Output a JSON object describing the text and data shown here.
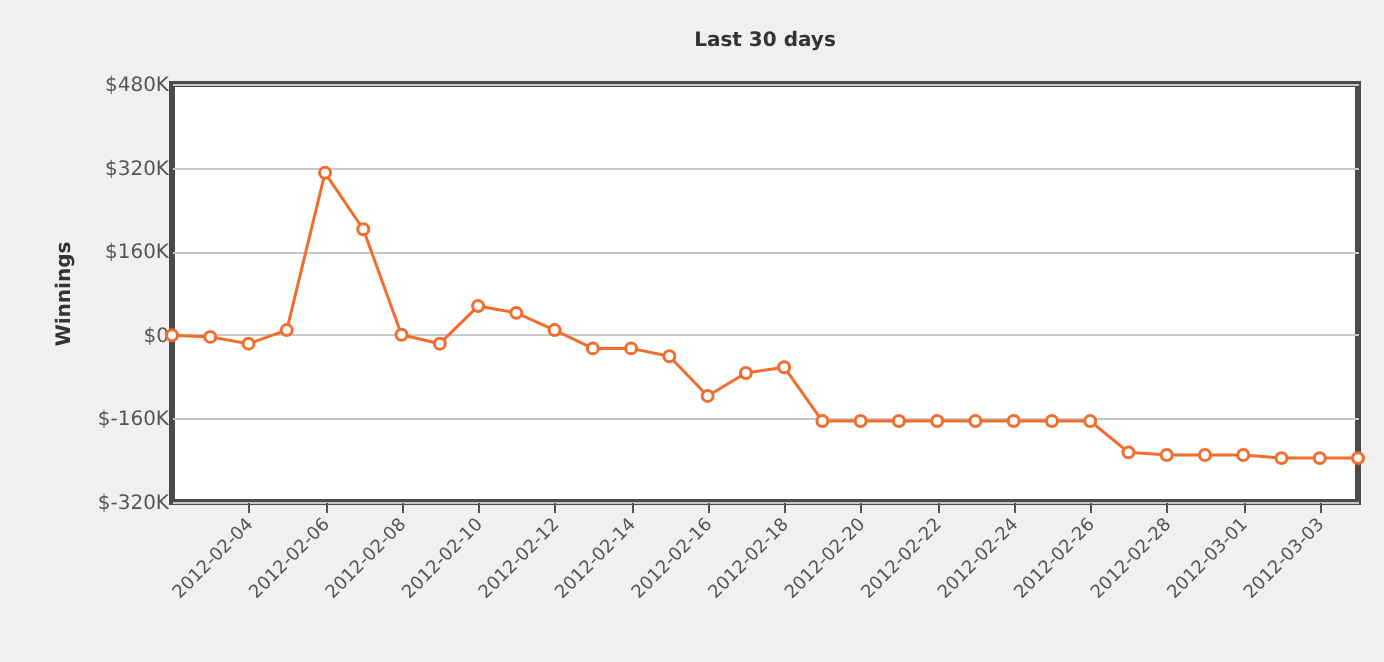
{
  "chart_data": {
    "type": "line",
    "title": "Last 30 days",
    "ylabel": "Winnings",
    "x": [
      "2012-02-02",
      "2012-02-03",
      "2012-02-04",
      "2012-02-05",
      "2012-02-06",
      "2012-02-07",
      "2012-02-08",
      "2012-02-09",
      "2012-02-10",
      "2012-02-11",
      "2012-02-12",
      "2012-02-13",
      "2012-02-14",
      "2012-02-15",
      "2012-02-16",
      "2012-02-17",
      "2012-02-18",
      "2012-02-19",
      "2012-02-20",
      "2012-02-21",
      "2012-02-22",
      "2012-02-23",
      "2012-02-24",
      "2012-02-25",
      "2012-02-26",
      "2012-02-27",
      "2012-02-28",
      "2012-02-29",
      "2012-03-01",
      "2012-03-02",
      "2012-03-03",
      "2012-03-04"
    ],
    "series": [
      {
        "color": "#f26d2d",
        "values": [
          -1,
          -4,
          -17,
          9,
          310,
          202,
          0,
          -17,
          55,
          42,
          9,
          -26,
          -26,
          -41,
          -117,
          -73,
          -62,
          -165,
          -165,
          -165,
          -165,
          -165,
          -165,
          -165,
          -165,
          -225,
          -230,
          -230,
          -230,
          -236,
          -236,
          -236
        ]
      }
    ],
    "xlim": [
      "2012-02-02",
      "2012-03-04"
    ],
    "xticks": [
      "2012-02-04",
      "2012-02-06",
      "2012-02-08",
      "2012-02-10",
      "2012-02-12",
      "2012-02-14",
      "2012-02-16",
      "2012-02-18",
      "2012-02-20",
      "2012-02-22",
      "2012-02-24",
      "2012-02-26",
      "2012-02-28",
      "2012-03-01",
      "2012-03-03"
    ],
    "ylim": [
      -320,
      480
    ],
    "yticks": [
      {
        "value": -320,
        "label": "$-320K"
      },
      {
        "value": -160,
        "label": "$-160K"
      },
      {
        "value": 0,
        "label": "$0"
      },
      {
        "value": 160,
        "label": "$160K"
      },
      {
        "value": 320,
        "label": "$320K"
      },
      {
        "value": 480,
        "label": "$480K"
      }
    ],
    "grid": "y",
    "marker": "circle",
    "line_style": "solid"
  }
}
